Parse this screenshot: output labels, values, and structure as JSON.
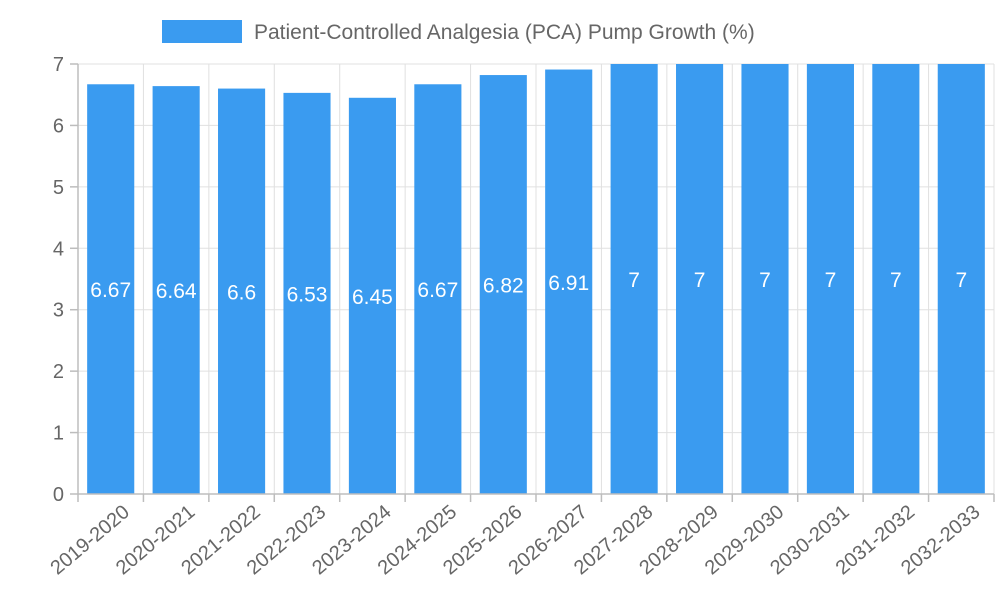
{
  "chart_data": {
    "type": "bar",
    "title": "",
    "xlabel": "",
    "ylabel": "",
    "ylim": [
      0,
      7
    ],
    "yticks": [
      "0",
      "1",
      "2",
      "3",
      "4",
      "5",
      "6",
      "7"
    ],
    "grid": true,
    "legend_position": "top-center",
    "categories": [
      "2019-2020",
      "2020-2021",
      "2021-2022",
      "2022-2023",
      "2023-2024",
      "2024-2025",
      "2025-2026",
      "2026-2027",
      "2027-2028",
      "2028-2029",
      "2029-2030",
      "2030-2031",
      "2031-2032",
      "2032-2033"
    ],
    "series": [
      {
        "name": "Patient-Controlled Analgesia (PCA) Pump Growth (%)",
        "color": "#3a9bf0",
        "values": [
          6.67,
          6.64,
          6.6,
          6.53,
          6.45,
          6.67,
          6.82,
          6.91,
          7,
          7,
          7,
          7,
          7,
          7
        ],
        "labels": [
          "6.67",
          "6.64",
          "6.6",
          "6.53",
          "6.45",
          "6.67",
          "6.82",
          "6.91",
          "7",
          "7",
          "7",
          "7",
          "7",
          "7"
        ]
      }
    ]
  }
}
